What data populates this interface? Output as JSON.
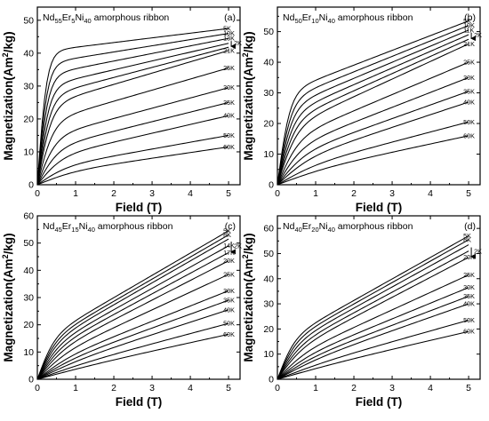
{
  "chart_data": [
    {
      "type": "line",
      "panel_letter": "(a)",
      "title_parts": [
        "Nd",
        "55",
        "Er",
        "5",
        "Ni",
        "40",
        " amorphous ribbon"
      ],
      "xlabel": "Field (T)",
      "ylabel_parts": [
        "Magnetization(Am",
        "2",
        "/kg)"
      ],
      "xlim": [
        0,
        5.3
      ],
      "ylim": [
        0,
        54
      ],
      "xticks": [
        0,
        1,
        2,
        3,
        4,
        5
      ],
      "yticks": [
        0,
        10,
        20,
        30,
        40,
        50
      ],
      "shape": "fast",
      "series": [
        {
          "name": "5K",
          "y_end": 47.5
        },
        {
          "name": "10K",
          "y_end": 46.0
        },
        {
          "name": "13K",
          "y_end": 44.5
        },
        {
          "name": "",
          "y_end": 43.0
        },
        {
          "name": "",
          "y_end": 41.8
        },
        {
          "name": "21K",
          "y_end": 40.8
        },
        {
          "name": "25K",
          "y_end": 35.5
        },
        {
          "name": "30K",
          "y_end": 29.5
        },
        {
          "name": "35K",
          "y_end": 25.0
        },
        {
          "name": "40K",
          "y_end": 21.0
        },
        {
          "name": "50K",
          "y_end": 15.0
        },
        {
          "name": "60K",
          "y_end": 11.5
        }
      ],
      "annotation": {
        "text": "2K",
        "arrow": "down"
      }
    },
    {
      "type": "line",
      "panel_letter": "(b)",
      "title_parts": [
        "Nd",
        "50",
        "Er",
        "10",
        "Ni",
        "40",
        " amorphous ribbon"
      ],
      "xlabel": "Field (T)",
      "ylabel_parts": [
        "Magnetization(Am",
        "2",
        "/kg)"
      ],
      "xlim": [
        0,
        5.3
      ],
      "ylim": [
        0,
        58
      ],
      "xticks": [
        0,
        1,
        2,
        3,
        4,
        5
      ],
      "yticks": [
        0,
        10,
        20,
        30,
        40,
        50
      ],
      "shape": "mid",
      "series": [
        {
          "name": "5K",
          "y_end": 53.5
        },
        {
          "name": "10K",
          "y_end": 52.0
        },
        {
          "name": "11K",
          "y_end": 50.5
        },
        {
          "name": "",
          "y_end": 49.0
        },
        {
          "name": "",
          "y_end": 47.5
        },
        {
          "name": "21K",
          "y_end": 46.0
        },
        {
          "name": "25K",
          "y_end": 40.0
        },
        {
          "name": "30K",
          "y_end": 35.0
        },
        {
          "name": "35K",
          "y_end": 30.5
        },
        {
          "name": "40K",
          "y_end": 27.0
        },
        {
          "name": "50K",
          "y_end": 20.5
        },
        {
          "name": "60K",
          "y_end": 16.0
        }
      ],
      "annotation": {
        "text": "2K",
        "arrow": "down"
      }
    },
    {
      "type": "line",
      "panel_letter": "(c)",
      "title_parts": [
        "Nd",
        "45",
        "Er",
        "15",
        "Ni",
        "40",
        " amorphous ribbon"
      ],
      "xlabel": "Field (T)",
      "ylabel_parts": [
        "Magnetization(Am",
        "2",
        "/kg)"
      ],
      "xlim": [
        0,
        5.3
      ],
      "ylim": [
        0,
        60
      ],
      "xticks": [
        0,
        1,
        2,
        3,
        4,
        5
      ],
      "yticks": [
        0,
        10,
        20,
        30,
        40,
        50,
        60
      ],
      "shape": "slow",
      "series": [
        {
          "name": "5K",
          "y_end": 54.5
        },
        {
          "name": "8K",
          "y_end": 53.0
        },
        {
          "name": "",
          "y_end": 51.5
        },
        {
          "name": "14K",
          "y_end": 49.0
        },
        {
          "name": "17K",
          "y_end": 46.5
        },
        {
          "name": "20K",
          "y_end": 43.5
        },
        {
          "name": "25K",
          "y_end": 38.5
        },
        {
          "name": "30K",
          "y_end": 32.5
        },
        {
          "name": "35K",
          "y_end": 29.0
        },
        {
          "name": "40K",
          "y_end": 25.5
        },
        {
          "name": "50K",
          "y_end": 20.5
        },
        {
          "name": "60K",
          "y_end": 16.5
        }
      ],
      "annotation": {
        "text": "2K",
        "arrow": "down"
      }
    },
    {
      "type": "line",
      "panel_letter": "(d)",
      "title_parts": [
        "Nd",
        "40",
        "Er",
        "20",
        "Ni",
        "40",
        " amorphous ribbon"
      ],
      "xlabel": "Field (T)",
      "ylabel_parts": [
        "Magnetization(Am",
        "2",
        "/kg)"
      ],
      "xlim": [
        0,
        5.3
      ],
      "ylim": [
        0,
        65
      ],
      "xticks": [
        0,
        1,
        2,
        3,
        4,
        5
      ],
      "yticks": [
        0,
        10,
        20,
        30,
        40,
        50,
        60
      ],
      "shape": "slow",
      "series": [
        {
          "name": "5K",
          "y_end": 57.0
        },
        {
          "name": "8K",
          "y_end": 55.5
        },
        {
          "name": "",
          "y_end": 53.5
        },
        {
          "name": "",
          "y_end": 51.0
        },
        {
          "name": "20K",
          "y_end": 48.5
        },
        {
          "name": "25K",
          "y_end": 41.5
        },
        {
          "name": "30K",
          "y_end": 36.5
        },
        {
          "name": "35K",
          "y_end": 33.0
        },
        {
          "name": "40K",
          "y_end": 30.0
        },
        {
          "name": "50K",
          "y_end": 23.5
        },
        {
          "name": "60K",
          "y_end": 19.0
        }
      ],
      "annotation": {
        "text": "2K",
        "arrow": "down"
      }
    }
  ]
}
